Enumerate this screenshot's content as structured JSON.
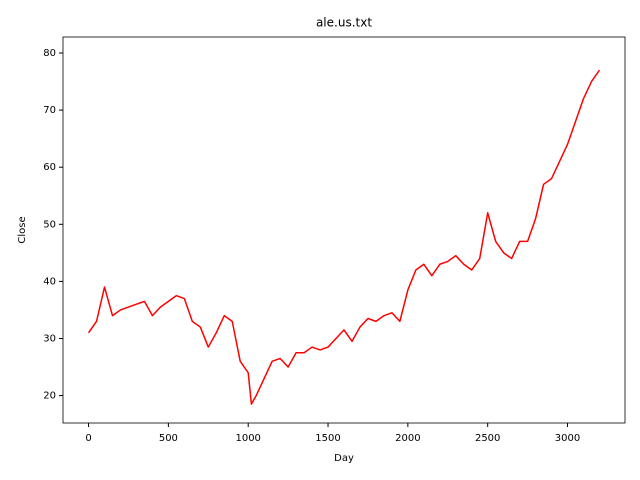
{
  "chart_data": {
    "type": "line",
    "title": "ale.us.txt",
    "x_label": "Day",
    "y_label": "Close",
    "x": [
      0,
      50,
      100,
      150,
      200,
      250,
      300,
      350,
      400,
      450,
      500,
      550,
      600,
      650,
      700,
      750,
      800,
      850,
      900,
      950,
      1000,
      1020,
      1050,
      1100,
      1150,
      1200,
      1250,
      1300,
      1350,
      1400,
      1450,
      1500,
      1550,
      1600,
      1650,
      1700,
      1750,
      1800,
      1850,
      1900,
      1950,
      2000,
      2050,
      2100,
      2150,
      2200,
      2250,
      2300,
      2350,
      2400,
      2450,
      2500,
      2550,
      2600,
      2650,
      2700,
      2750,
      2800,
      2850,
      2900,
      2950,
      3000,
      3050,
      3100,
      3150,
      3200
    ],
    "series": [
      {
        "color": "#ff0000",
        "values": [
          31,
          33,
          39,
          34,
          35,
          35.5,
          36,
          36.5,
          34,
          35.5,
          36.5,
          37.5,
          37,
          33,
          32,
          28.5,
          31,
          34,
          33,
          26,
          24,
          18.5,
          20,
          23,
          26,
          26.5,
          25,
          27.5,
          27.5,
          28.5,
          28,
          28.5,
          30,
          31.5,
          29.5,
          32,
          33.5,
          33,
          34,
          34.5,
          33,
          38.5,
          42,
          43,
          41,
          43,
          43.5,
          44.5,
          43,
          42,
          44,
          52,
          47,
          45,
          44,
          47,
          47,
          51,
          57,
          58,
          61,
          64,
          68,
          72,
          75,
          77
        ]
      }
    ],
    "xlim": [
      -160,
      3360
    ],
    "ylim": [
      15.2,
      82.8
    ],
    "xticks": [
      0,
      500,
      1000,
      1500,
      2000,
      2500,
      3000
    ],
    "yticks": [
      20,
      30,
      40,
      50,
      60,
      70,
      80
    ],
    "grid": false
  }
}
